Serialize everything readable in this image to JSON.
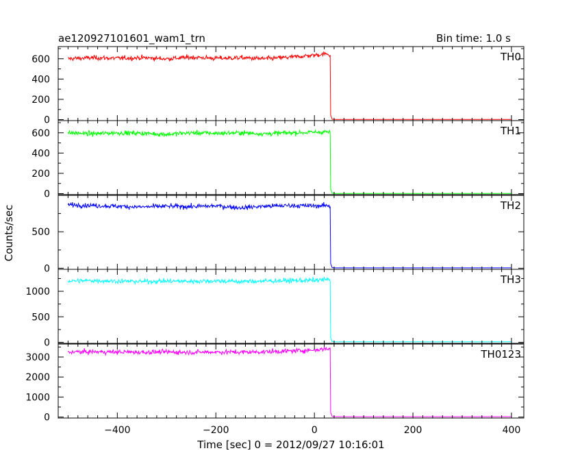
{
  "header": {
    "title": "ae120927101601_wam1_trn",
    "bin_time": "Bin time: 1.0 s"
  },
  "chart_data": {
    "type": "line",
    "title": "ae120927101601_wam1_trn",
    "xlabel": "Time [sec] 0 = 2012/09/27 10:16:01",
    "ylabel": "Counts/sec",
    "xlim": [
      -520,
      425
    ],
    "x_ticks": [
      -400,
      -200,
      0,
      200,
      400
    ],
    "x_tick_labels": [
      "−400",
      "−200",
      "0",
      "200",
      "400"
    ],
    "shared_x": true,
    "panels": [
      {
        "name": "TH0",
        "color": "#ff0000",
        "ylim": [
          -10,
          720
        ],
        "y_ticks": [
          0,
          200,
          400,
          600
        ],
        "y_tick_labels": [
          "0",
          "200",
          "400",
          "600"
        ],
        "x": [
          -500,
          -450,
          -400,
          -350,
          -300,
          -250,
          -200,
          -150,
          -100,
          -50,
          0,
          25,
          32,
          33,
          40,
          100,
          200,
          300,
          400
        ],
        "y": [
          600,
          610,
          605,
          610,
          600,
          615,
          605,
          610,
          600,
          615,
          635,
          650,
          640,
          5,
          2,
          2,
          2,
          2,
          2
        ]
      },
      {
        "name": "TH1",
        "color": "#00ff00",
        "ylim": [
          -10,
          720
        ],
        "y_ticks": [
          0,
          200,
          400,
          600
        ],
        "y_tick_labels": [
          "0",
          "200",
          "400",
          "600"
        ],
        "x": [
          -500,
          -450,
          -400,
          -350,
          -300,
          -250,
          -200,
          -150,
          -100,
          -50,
          0,
          25,
          32,
          33,
          40,
          100,
          200,
          300,
          400
        ],
        "y": [
          600,
          590,
          600,
          595,
          585,
          600,
          595,
          600,
          590,
          600,
          605,
          610,
          600,
          5,
          2,
          2,
          2,
          2,
          2
        ]
      },
      {
        "name": "TH2",
        "color": "#0000ff",
        "ylim": [
          -15,
          1000
        ],
        "y_ticks": [
          0,
          500
        ],
        "y_tick_labels": [
          "0",
          "500"
        ],
        "x": [
          -500,
          -450,
          -400,
          -350,
          -300,
          -250,
          -200,
          -150,
          -100,
          -50,
          0,
          25,
          32,
          33,
          40,
          100,
          200,
          300,
          400
        ],
        "y": [
          870,
          860,
          850,
          840,
          850,
          845,
          855,
          830,
          850,
          860,
          855,
          860,
          850,
          10,
          5,
          5,
          5,
          5,
          5
        ]
      },
      {
        "name": "TH3",
        "color": "#00ffff",
        "ylim": [
          -20,
          1430
        ],
        "y_ticks": [
          0,
          500,
          1000
        ],
        "y_tick_labels": [
          "0",
          "500",
          "1000"
        ],
        "x": [
          -500,
          -450,
          -400,
          -350,
          -300,
          -250,
          -200,
          -150,
          -100,
          -50,
          0,
          25,
          32,
          33,
          40,
          100,
          200,
          300,
          400
        ],
        "y": [
          1200,
          1210,
          1200,
          1190,
          1200,
          1195,
          1205,
          1190,
          1200,
          1210,
          1215,
          1230,
          1220,
          15,
          10,
          10,
          10,
          10,
          10
        ]
      },
      {
        "name": "TH0123",
        "color": "#ff00ff",
        "ylim": [
          -50,
          3650
        ],
        "y_ticks": [
          0,
          1000,
          2000,
          3000
        ],
        "y_tick_labels": [
          "0",
          "1000",
          "2000",
          "3000"
        ],
        "x": [
          -500,
          -450,
          -400,
          -350,
          -300,
          -250,
          -200,
          -150,
          -100,
          -50,
          0,
          25,
          32,
          33,
          40,
          100,
          200,
          300,
          400
        ],
        "y": [
          3250,
          3260,
          3250,
          3240,
          3250,
          3235,
          3250,
          3245,
          3260,
          3300,
          3350,
          3420,
          3400,
          30,
          20,
          20,
          20,
          20,
          20
        ]
      }
    ]
  }
}
